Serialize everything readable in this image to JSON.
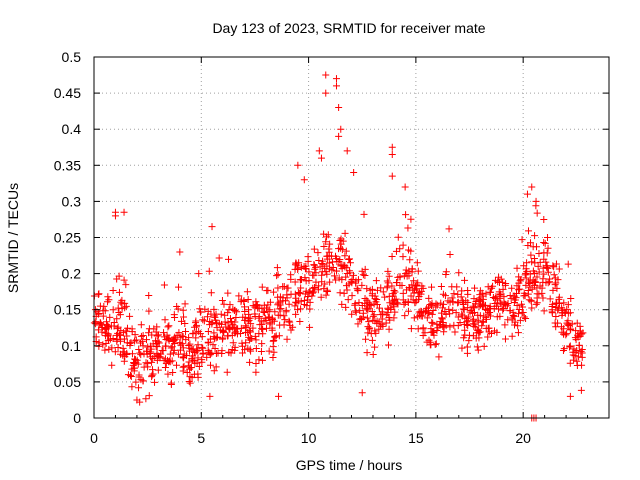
{
  "chart_data": {
    "type": "scatter",
    "title": "Day 123 of 2023, SRMTID for receiver mate",
    "xlabel": "GPS time / hours",
    "ylabel": "SRMTID / TECUs",
    "xlim": [
      0,
      24
    ],
    "ylim": [
      0,
      0.5
    ],
    "grid": true,
    "marker": "plus",
    "color": "#ff0000",
    "x_ticks": [
      0,
      5,
      10,
      15,
      20
    ],
    "x_tick_labels": [
      "0",
      "5",
      "10",
      "15",
      "20"
    ],
    "y_ticks": [
      0,
      0.05,
      0.1,
      0.15,
      0.2,
      0.25,
      0.3,
      0.35,
      0.4,
      0.45,
      0.5
    ],
    "y_tick_labels": [
      "0",
      "0.05",
      "0.1",
      "0.15",
      "0.2",
      "0.25",
      "0.3",
      "0.35",
      "0.4",
      "0.45",
      "0.5"
    ],
    "trend": [
      [
        0.0,
        0.14
      ],
      [
        0.5,
        0.12
      ],
      [
        1.0,
        0.13
      ],
      [
        1.5,
        0.11
      ],
      [
        2.0,
        0.07
      ],
      [
        2.5,
        0.08
      ],
      [
        3.0,
        0.09
      ],
      [
        3.5,
        0.1
      ],
      [
        4.0,
        0.11
      ],
      [
        4.5,
        0.09
      ],
      [
        5.0,
        0.11
      ],
      [
        5.5,
        0.12
      ],
      [
        6.0,
        0.12
      ],
      [
        6.5,
        0.13
      ],
      [
        7.0,
        0.13
      ],
      [
        7.5,
        0.12
      ],
      [
        8.0,
        0.13
      ],
      [
        8.5,
        0.14
      ],
      [
        9.0,
        0.16
      ],
      [
        9.5,
        0.18
      ],
      [
        10.0,
        0.19
      ],
      [
        10.5,
        0.2
      ],
      [
        11.0,
        0.22
      ],
      [
        11.5,
        0.21
      ],
      [
        12.0,
        0.19
      ],
      [
        12.5,
        0.16
      ],
      [
        13.0,
        0.14
      ],
      [
        13.5,
        0.15
      ],
      [
        14.0,
        0.17
      ],
      [
        14.5,
        0.19
      ],
      [
        15.0,
        0.17
      ],
      [
        15.5,
        0.14
      ],
      [
        16.0,
        0.13
      ],
      [
        16.5,
        0.16
      ],
      [
        17.0,
        0.15
      ],
      [
        17.5,
        0.13
      ],
      [
        18.0,
        0.14
      ],
      [
        18.5,
        0.15
      ],
      [
        19.0,
        0.16
      ],
      [
        19.5,
        0.15
      ],
      [
        20.0,
        0.17
      ],
      [
        20.5,
        0.2
      ],
      [
        21.0,
        0.21
      ],
      [
        21.5,
        0.17
      ],
      [
        22.0,
        0.12
      ],
      [
        22.5,
        0.09
      ],
      [
        22.8,
        0.1
      ]
    ],
    "highlights": [
      {
        "x": 9.5,
        "y": 0.35
      },
      {
        "x": 9.8,
        "y": 0.33
      },
      {
        "x": 10.5,
        "y": 0.37
      },
      {
        "x": 10.6,
        "y": 0.36
      },
      {
        "x": 10.8,
        "y": 0.475
      },
      {
        "x": 10.8,
        "y": 0.45
      },
      {
        "x": 11.3,
        "y": 0.47
      },
      {
        "x": 11.3,
        "y": 0.46
      },
      {
        "x": 11.4,
        "y": 0.43
      },
      {
        "x": 11.5,
        "y": 0.4
      },
      {
        "x": 11.4,
        "y": 0.39
      },
      {
        "x": 11.8,
        "y": 0.37
      },
      {
        "x": 12.1,
        "y": 0.34
      },
      {
        "x": 13.9,
        "y": 0.375
      },
      {
        "x": 13.9,
        "y": 0.365
      },
      {
        "x": 13.9,
        "y": 0.335
      },
      {
        "x": 14.5,
        "y": 0.32
      },
      {
        "x": 20.2,
        "y": 0.31
      },
      {
        "x": 20.4,
        "y": 0.32
      },
      {
        "x": 20.6,
        "y": 0.3
      },
      {
        "x": 1.0,
        "y": 0.285
      },
      {
        "x": 1.0,
        "y": 0.28
      },
      {
        "x": 1.4,
        "y": 0.285
      },
      {
        "x": 5.5,
        "y": 0.265
      },
      {
        "x": 4.0,
        "y": 0.23
      },
      {
        "x": 2.0,
        "y": 0.025
      },
      {
        "x": 5.4,
        "y": 0.03
      },
      {
        "x": 8.6,
        "y": 0.03
      },
      {
        "x": 12.5,
        "y": 0.035
      },
      {
        "x": 22.2,
        "y": 0.03
      },
      {
        "x": 20.4,
        "y": 0.0
      },
      {
        "x": 20.5,
        "y": 0.0
      },
      {
        "x": 20.6,
        "y": 0.0
      }
    ],
    "noise_seed": 123,
    "points_per_hour": 60,
    "spread": 0.045
  }
}
